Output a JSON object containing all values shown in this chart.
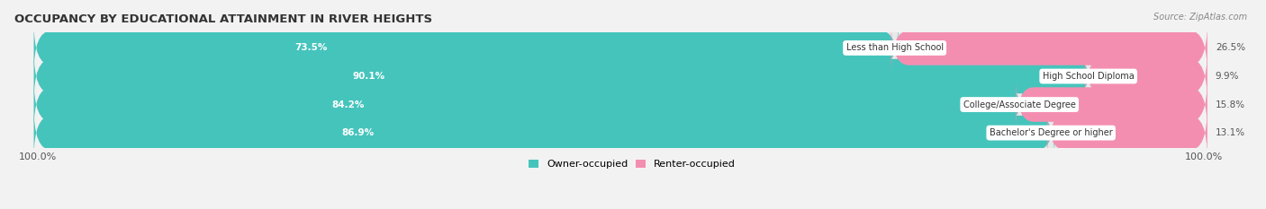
{
  "title": "OCCUPANCY BY EDUCATIONAL ATTAINMENT IN RIVER HEIGHTS",
  "source": "Source: ZipAtlas.com",
  "categories": [
    "Less than High School",
    "High School Diploma",
    "College/Associate Degree",
    "Bachelor's Degree or higher"
  ],
  "owner_pct": [
    73.5,
    90.1,
    84.2,
    86.9
  ],
  "renter_pct": [
    26.5,
    9.9,
    15.8,
    13.1
  ],
  "owner_color": "#45C4BC",
  "renter_color": "#F48EB0",
  "background_color": "#f2f2f2",
  "bar_background": "#e8e8e8",
  "bar_height": 0.62,
  "title_fontsize": 9.5,
  "label_fontsize": 7.5,
  "tick_fontsize": 8,
  "legend_fontsize": 8,
  "axis_label_left": "100.0%",
  "axis_label_right": "100.0%"
}
